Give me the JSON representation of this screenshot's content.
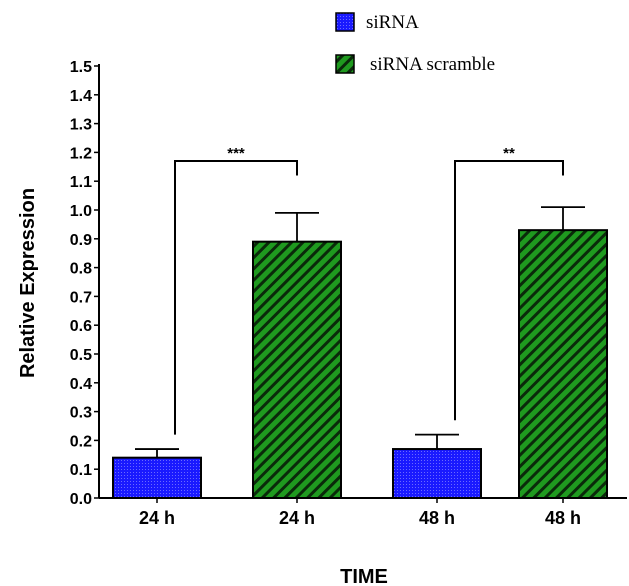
{
  "chart_data": {
    "type": "bar",
    "title": "",
    "xlabel": "TIME",
    "ylabel": "Relative Expression",
    "ylim": [
      0,
      1.5
    ],
    "yticks": [
      "0.0",
      "0.1",
      "0.2",
      "0.3",
      "0.4",
      "0.5",
      "0.6",
      "0.7",
      "0.8",
      "0.9",
      "1.0",
      "1.1",
      "1.2",
      "1.3",
      "1.4",
      "1.5"
    ],
    "legend": {
      "placement": "top"
    },
    "series": [
      {
        "name": "siRNA",
        "color": "#1a1aff",
        "pattern": "dots"
      },
      {
        "name": "siRNA scramble",
        "color": "#1f9a1f",
        "pattern": "diagonal-stripes"
      }
    ],
    "bars": [
      {
        "label": "24 h",
        "series": "siRNA",
        "value": 0.14,
        "error": 0.03
      },
      {
        "label": "24 h",
        "series": "siRNA scramble",
        "value": 0.89,
        "error": 0.1
      },
      {
        "label": "48 h",
        "series": "siRNA",
        "value": 0.17,
        "error": 0.05
      },
      {
        "label": "48 h",
        "series": "siRNA scramble",
        "value": 0.93,
        "error": 0.08
      }
    ],
    "annotations": [
      {
        "text": "***",
        "from": 0,
        "to": 1,
        "level": 1.17
      },
      {
        "text": "**",
        "from": 2,
        "to": 3,
        "level": 1.17
      }
    ]
  }
}
